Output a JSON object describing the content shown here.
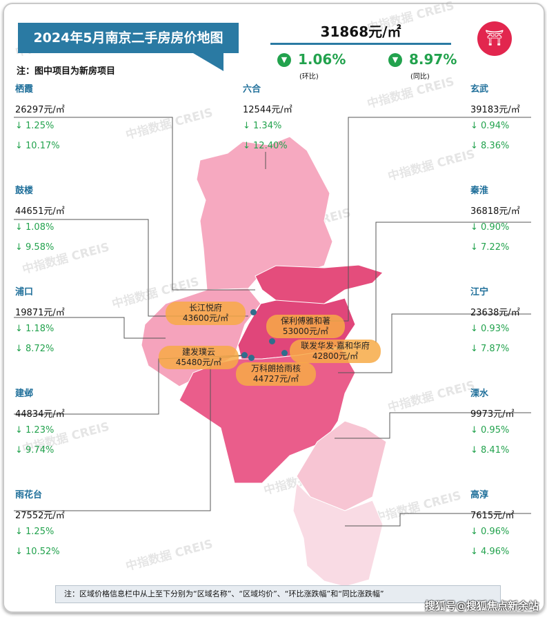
{
  "title": "2024年5月南京二手房房价地图",
  "note": "注：图中项目为新房项目",
  "city_avg": {
    "price": "31868元/㎡",
    "mom": "1.06%",
    "mom_label": "(环比)",
    "yoy": "8.97%",
    "yoy_label": "(同比)",
    "direction": "down",
    "color": "#22a24d"
  },
  "logo_icon": "pagoda-icon",
  "districts": [
    {
      "name": "栖霞",
      "price": "26297元/㎡",
      "mom": "↓ 1.25%",
      "yoy": "↓ 10.17%"
    },
    {
      "name": "鼓楼",
      "price": "44651元/㎡",
      "mom": "↓ 1.08%",
      "yoy": "↓ 9.58%"
    },
    {
      "name": "浦口",
      "price": "19871元/㎡",
      "mom": "↓ 1.18%",
      "yoy": "↓ 8.72%"
    },
    {
      "name": "建邺",
      "price": "44834元/㎡",
      "mom": "↓ 1.23%",
      "yoy": "↓ 9.74%"
    },
    {
      "name": "雨花台",
      "price": "27552元/㎡",
      "mom": "↓ 1.25%",
      "yoy": "↓ 10.52%"
    },
    {
      "name": "六合",
      "price": "12544元/㎡",
      "mom": "↓ 1.34%",
      "yoy": "↓ 12.40%"
    },
    {
      "name": "玄武",
      "price": "39183元/㎡",
      "mom": "↓ 0.94%",
      "yoy": "↓ 8.36%"
    },
    {
      "name": "秦淮",
      "price": "36818元/㎡",
      "mom": "↓ 0.90%",
      "yoy": "↓ 7.22%"
    },
    {
      "name": "江宁",
      "price": "23638元/㎡",
      "mom": "↓ 0.93%",
      "yoy": "↓ 7.87%"
    },
    {
      "name": "溧水",
      "price": "9973元/㎡",
      "mom": "↓ 0.95%",
      "yoy": "↓ 8.41%"
    },
    {
      "name": "高淳",
      "price": "7615元/㎡",
      "mom": "↓ 0.96%",
      "yoy": "↓ 4.96%"
    }
  ],
  "projects": [
    {
      "name": "长江悦府",
      "price": "43600元/㎡"
    },
    {
      "name": "保利傅雅和著",
      "price": "53000元/㎡"
    },
    {
      "name": "联发华发·嘉和华府",
      "price": "42800元/㎡"
    },
    {
      "name": "建发璞云",
      "price": "45480元/㎡"
    },
    {
      "name": "万科朗拾雨核",
      "price": "44727元/㎡"
    }
  ],
  "footer_note": "注：区域价格信息栏中从上至下分别为“区域名称”、“区域均价”、“环比涨跌幅”和“同比涨跌幅”",
  "watermark": "中指数据 CREIS",
  "source_watermark": "搜狐号@搜狐焦点新余站"
}
